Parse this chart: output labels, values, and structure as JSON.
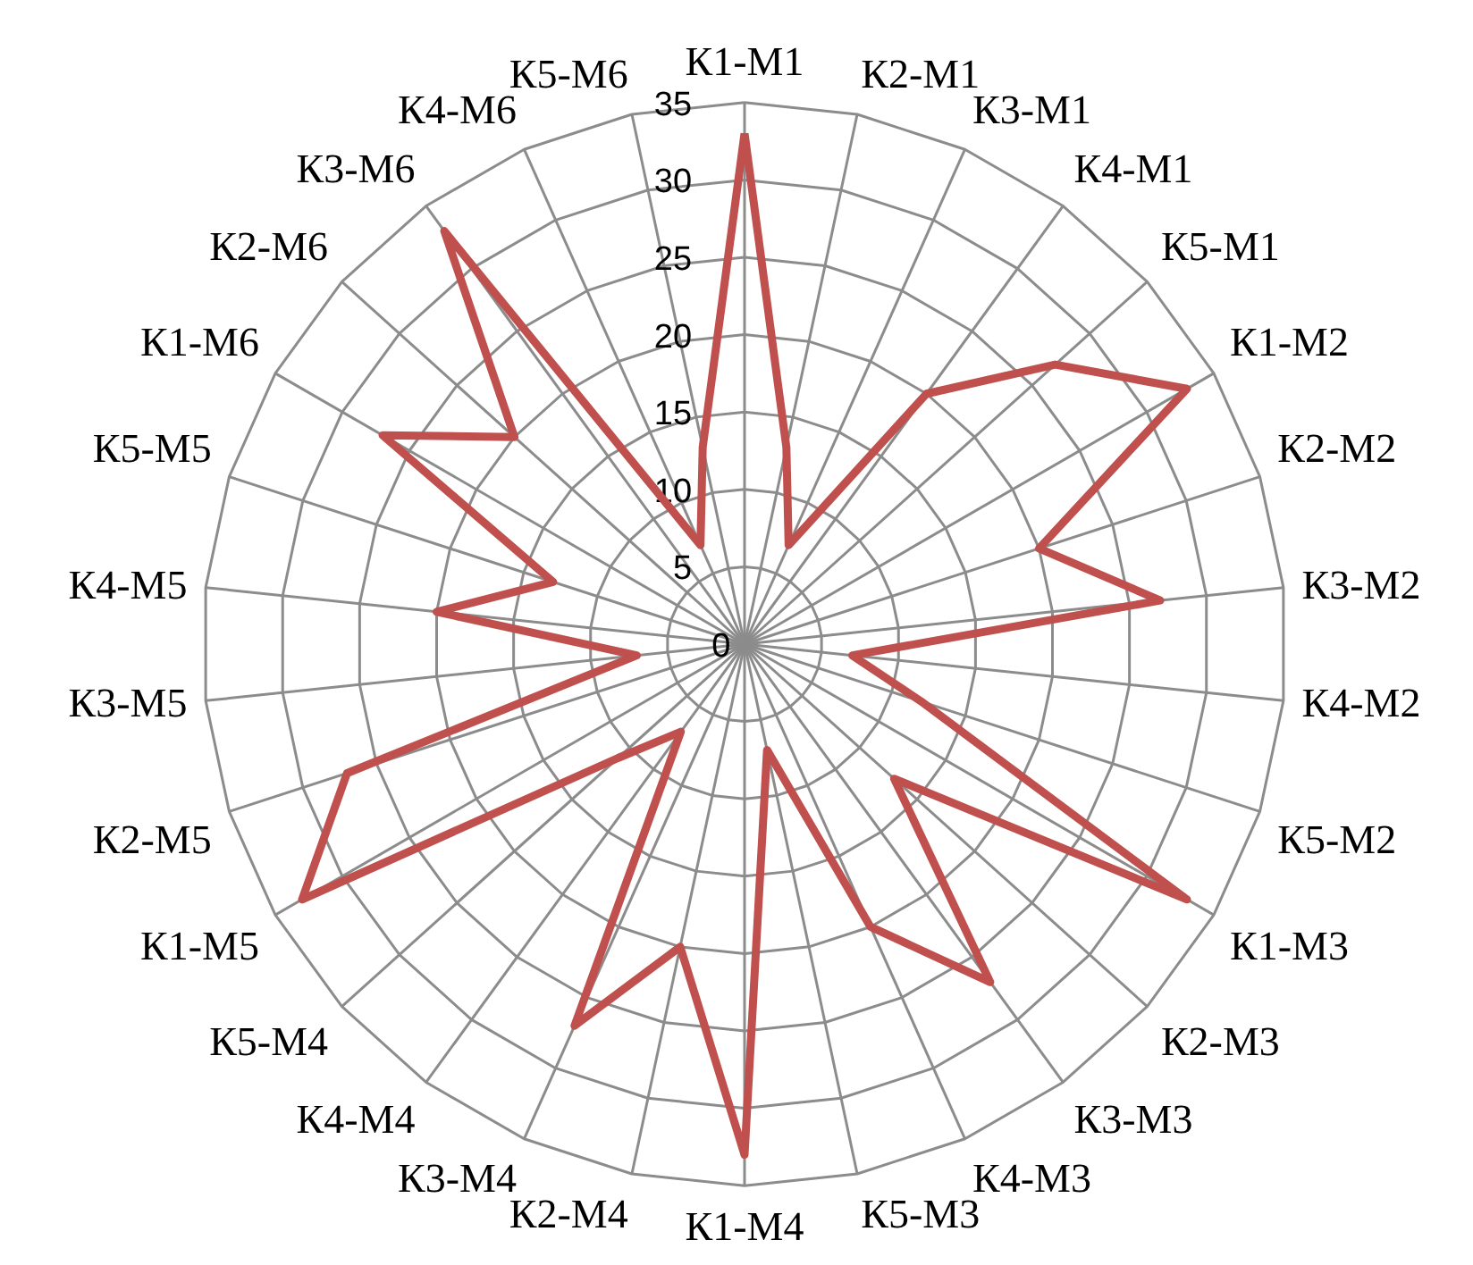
{
  "chart_data": {
    "type": "radar",
    "categories": [
      "К1-М1",
      "К2-М1",
      "К3-М1",
      "К4-М1",
      "К5-М1",
      "К1-М2",
      "К2-М2",
      "К3-М2",
      "К4-М2",
      "К5-М2",
      "К1-М3",
      "К2-М3",
      "К3-М3",
      "К4-М3",
      "К5-М3",
      "К1-М4",
      "К2-М4",
      "К3-М4",
      "К4-М4",
      "К5-М4",
      "К1-М5",
      "К2-М5",
      "К3-М5",
      "К4-М5",
      "К5-М5",
      "К1-М6",
      "К2-М6",
      "К3-М6",
      "К4-М6",
      "К5-М6"
    ],
    "series": [
      {
        "color": "#c0504d",
        "values": [
          33,
          13,
          7,
          20,
          27,
          33,
          20,
          27,
          7,
          12,
          33,
          13,
          27,
          20,
          7,
          33,
          20,
          27,
          7,
          11,
          33,
          27,
          7,
          20,
          13,
          27,
          20,
          33,
          7,
          13
        ]
      }
    ],
    "ylim": [
      0,
      35
    ],
    "yticks": [
      0,
      5,
      10,
      15,
      20,
      25,
      30,
      35
    ],
    "grid": true,
    "line_style": "solid"
  }
}
